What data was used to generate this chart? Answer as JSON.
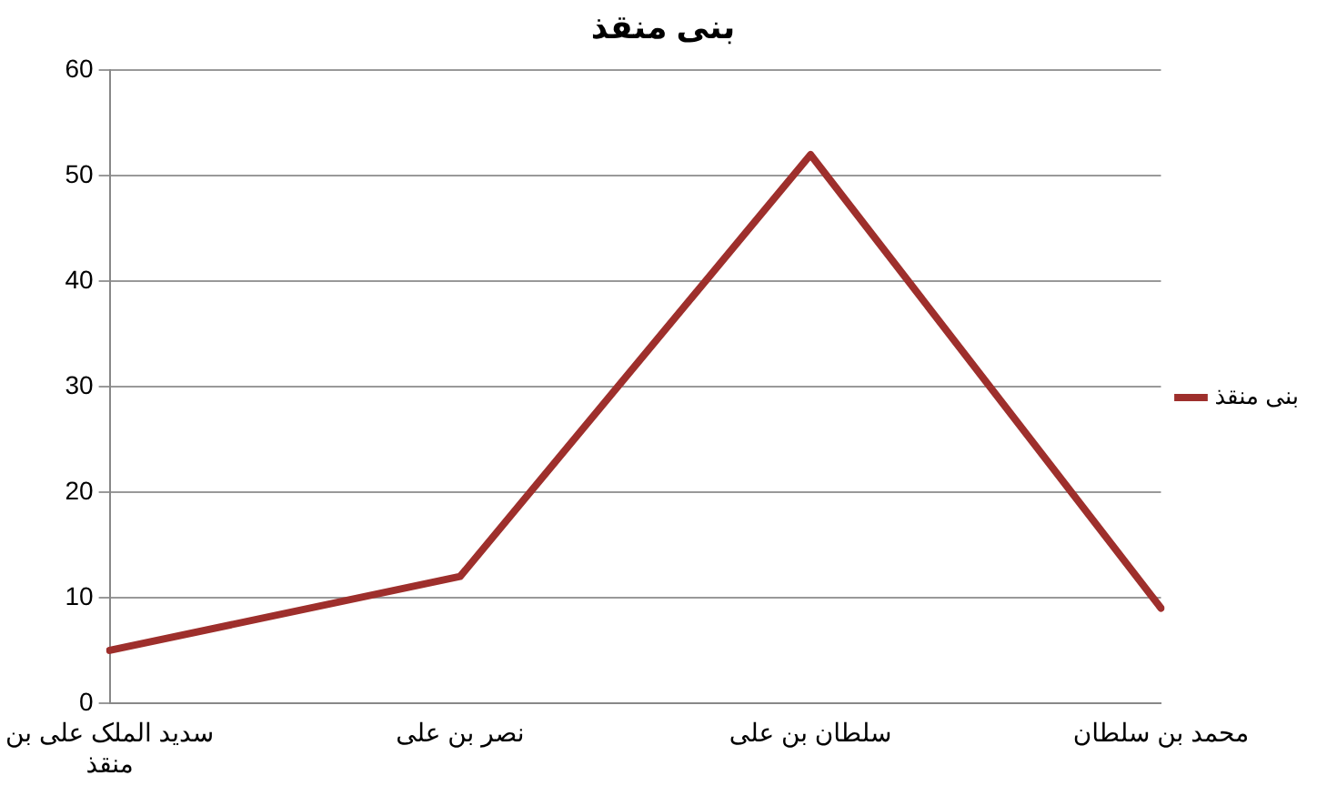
{
  "chart_data": {
    "type": "line",
    "title": "بنی منقذ",
    "categories": [
      "سدید الملک علی بن منقذ",
      "نصر بن علی",
      "سلطان بن علی",
      "محمد بن سلطان"
    ],
    "series": [
      {
        "name": "بنی منقذ",
        "color": "#9e2f2c",
        "values": [
          5,
          12,
          52,
          9
        ]
      }
    ],
    "ylim": [
      0,
      60
    ],
    "yticks": [
      0,
      10,
      20,
      30,
      40,
      50,
      60
    ],
    "grid": "y",
    "legend": "right",
    "marker": "none",
    "line_style": "solid"
  }
}
